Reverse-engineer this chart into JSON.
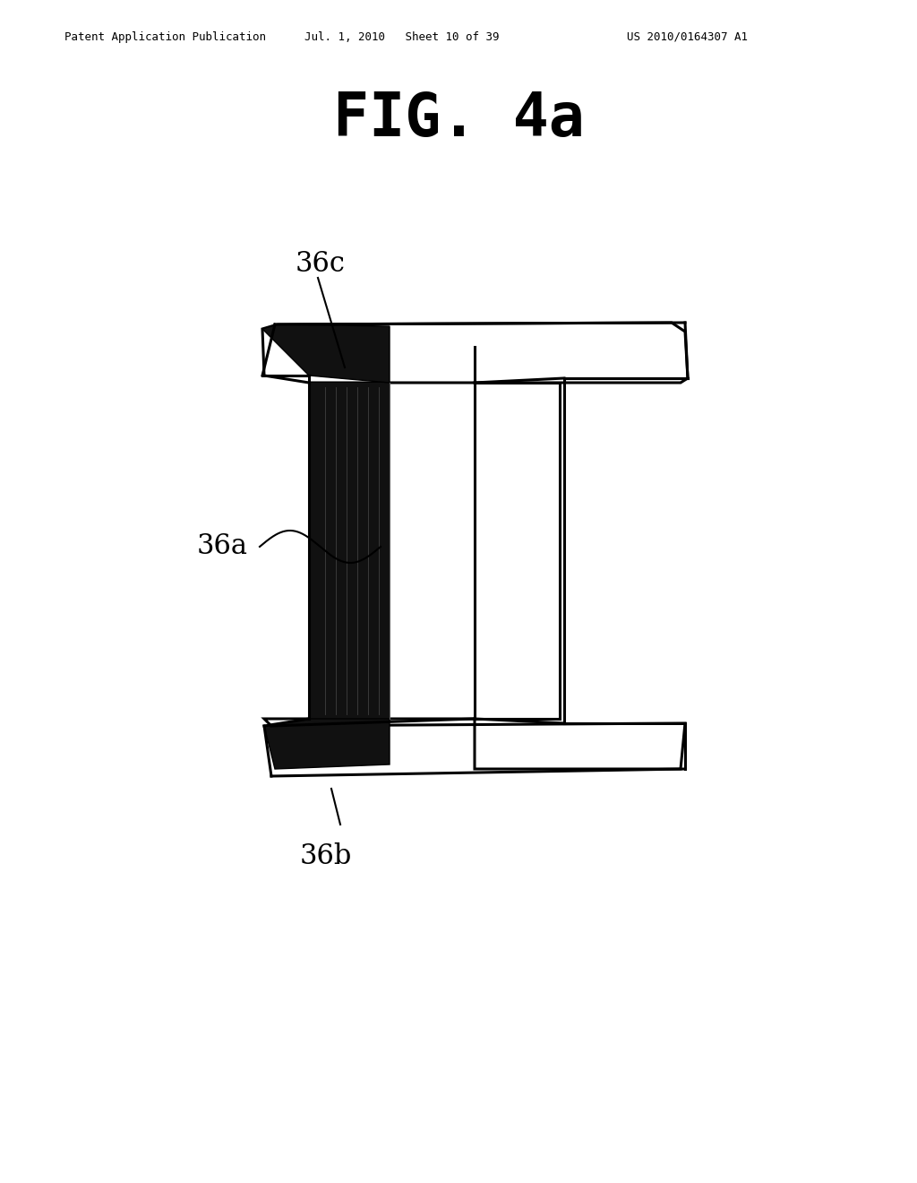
{
  "fig_title": "FIG. 4a",
  "header_left": "Patent Application Publication",
  "header_mid": "Jul. 1, 2010   Sheet 10 of 39",
  "header_right": "US 2010/0164307 A1",
  "label_36a": "36a",
  "label_36b": "36b",
  "label_36c": "36c",
  "bg_color": "#ffffff",
  "line_color": "#000000",
  "dark_fill": "#111111",
  "body_fill": "#ffffff"
}
